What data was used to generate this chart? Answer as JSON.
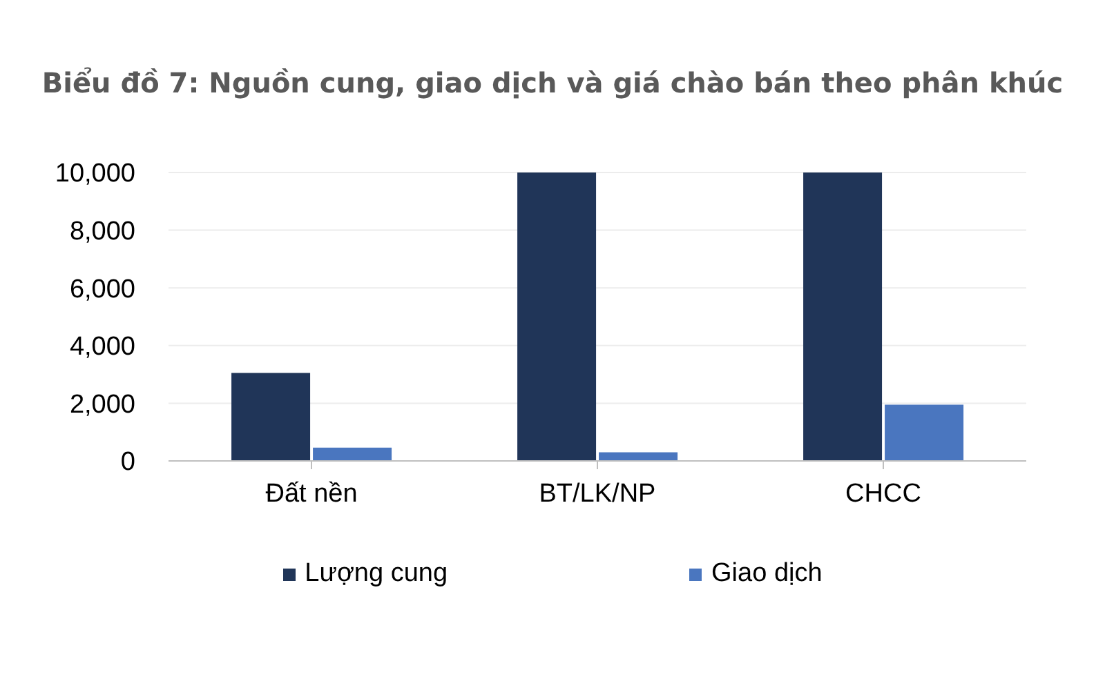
{
  "chart_data": {
    "type": "bar",
    "title": "Biểu đồ 7: Nguồn cung, giao dịch và giá chào bán theo phân khúc",
    "categories": [
      "Đất nền",
      "BT/LK/NP",
      "CHCC"
    ],
    "series": [
      {
        "name": "Lượng cung",
        "color": "#203558",
        "values": [
          3050,
          10000,
          10000
        ]
      },
      {
        "name": "Giao dịch",
        "color": "#4a76bf",
        "values": [
          460,
          300,
          1950
        ]
      }
    ],
    "ylim": [
      0,
      10000
    ],
    "yticks": [
      {
        "value": 0,
        "label": "0"
      },
      {
        "value": 2000,
        "label": "2,000"
      },
      {
        "value": 4000,
        "label": "4,000"
      },
      {
        "value": 6000,
        "label": "6,000"
      },
      {
        "value": 8000,
        "label": "8,000"
      },
      {
        "value": 10000,
        "label": "10,000"
      }
    ],
    "grid": "y",
    "legend": "bottom"
  }
}
